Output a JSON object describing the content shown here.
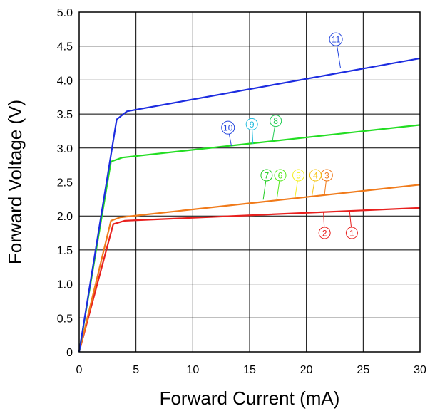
{
  "chart_data": {
    "type": "line",
    "xlabel": "Forward Current (mA)",
    "ylabel": "Forward Voltage (V)",
    "xlim": [
      0,
      30
    ],
    "ylim": [
      0,
      5.0
    ],
    "x_ticks": [
      "0",
      "5",
      "10",
      "15",
      "20",
      "25",
      "30"
    ],
    "y_ticks": [
      "0",
      "0.5",
      "1.0",
      "1.5",
      "2.0",
      "2.5",
      "3.0",
      "3.5",
      "4.0",
      "4.5",
      "5.0"
    ],
    "grid": true,
    "series": [
      {
        "color": "#e8201e",
        "x": [
          0,
          3.0,
          4.0,
          30
        ],
        "y": [
          0,
          1.88,
          1.93,
          2.12
        ]
      },
      {
        "color": "#f07a1a",
        "x": [
          0,
          2.8,
          3.6,
          30
        ],
        "y": [
          0,
          1.93,
          1.98,
          2.46
        ]
      },
      {
        "color": "#22dd22",
        "x": [
          0,
          2.8,
          3.8,
          30
        ],
        "y": [
          0,
          2.8,
          2.86,
          3.34
        ]
      },
      {
        "color": "#1c2ce0",
        "x": [
          0,
          3.3,
          4.2,
          30
        ],
        "y": [
          0,
          3.42,
          3.54,
          4.32
        ]
      }
    ],
    "annotations": [
      {
        "text": "1",
        "color": "#e8201e",
        "x": 24.0,
        "y": 1.75,
        "tx": 23.8,
        "ty": 2.07
      },
      {
        "text": "2",
        "color": "#e8201e",
        "x": 21.6,
        "y": 1.75,
        "tx": 21.5,
        "ty": 2.06
      },
      {
        "text": "3",
        "color": "#f07a1a",
        "x": 21.8,
        "y": 2.6,
        "tx": 21.6,
        "ty": 2.32
      },
      {
        "text": "4",
        "color": "#f5c518",
        "x": 20.8,
        "y": 2.6,
        "tx": 20.5,
        "ty": 2.3
      },
      {
        "text": "5",
        "color": "#f5f020",
        "x": 19.3,
        "y": 2.6,
        "tx": 19.0,
        "ty": 2.27
      },
      {
        "text": "6",
        "color": "#55e81e",
        "x": 17.7,
        "y": 2.6,
        "tx": 17.4,
        "ty": 2.25
      },
      {
        "text": "7",
        "color": "#22cc22",
        "x": 16.5,
        "y": 2.6,
        "tx": 16.2,
        "ty": 2.24
      },
      {
        "text": "8",
        "color": "#22cc55",
        "x": 17.3,
        "y": 3.4,
        "tx": 17.0,
        "ty": 3.09
      },
      {
        "text": "9",
        "color": "#22bbdd",
        "x": 15.2,
        "y": 3.35,
        "tx": 15.3,
        "ty": 3.06
      },
      {
        "text": "10",
        "color": "#2244dd",
        "x": 13.1,
        "y": 3.3,
        "tx": 13.4,
        "ty": 3.03
      },
      {
        "text": "11",
        "color": "#2244dd",
        "x": 22.6,
        "y": 4.6,
        "tx": 23.0,
        "ty": 4.18
      }
    ]
  }
}
